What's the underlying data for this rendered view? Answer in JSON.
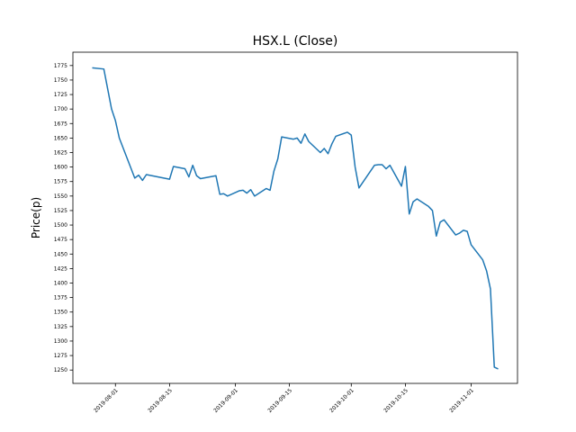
{
  "chart_data": {
    "type": "line",
    "title": "HSX.L (Close)",
    "y_label": "Price(p)",
    "color": "#1f77b4",
    "x": [
      "2019-07-26",
      "2019-07-29",
      "2019-07-31",
      "2019-08-01",
      "2019-08-02",
      "2019-08-06",
      "2019-08-07",
      "2019-08-08",
      "2019-08-09",
      "2019-08-15",
      "2019-08-16",
      "2019-08-19",
      "2019-08-20",
      "2019-08-21",
      "2019-08-22",
      "2019-08-23",
      "2019-08-27",
      "2019-08-28",
      "2019-08-29",
      "2019-08-30",
      "2019-09-02",
      "2019-09-03",
      "2019-09-04",
      "2019-09-05",
      "2019-09-06",
      "2019-09-09",
      "2019-09-10",
      "2019-09-11",
      "2019-09-12",
      "2019-09-13",
      "2019-09-16",
      "2019-09-17",
      "2019-09-18",
      "2019-09-19",
      "2019-09-20",
      "2019-09-23",
      "2019-09-24",
      "2019-09-25",
      "2019-09-26",
      "2019-09-27",
      "2019-09-30",
      "2019-10-01",
      "2019-10-02",
      "2019-10-03",
      "2019-10-07",
      "2019-10-08",
      "2019-10-09",
      "2019-10-10",
      "2019-10-11",
      "2019-10-14",
      "2019-10-15",
      "2019-10-16",
      "2019-10-17",
      "2019-10-18",
      "2019-10-21",
      "2019-10-22",
      "2019-10-23",
      "2019-10-24",
      "2019-10-25",
      "2019-10-28",
      "2019-10-29",
      "2019-10-30",
      "2019-10-31",
      "2019-11-01",
      "2019-11-04",
      "2019-11-05",
      "2019-11-06",
      "2019-11-07",
      "2019-11-08"
    ],
    "values": [
      1771,
      1769,
      1700,
      1680,
      1650,
      1581,
      1586,
      1577,
      1587,
      1579,
      1601,
      1597,
      1583,
      1603,
      1585,
      1580,
      1585,
      1553,
      1554,
      1550,
      1559,
      1560,
      1555,
      1561,
      1550,
      1563,
      1560,
      1593,
      1614,
      1652,
      1648,
      1650,
      1641,
      1657,
      1644,
      1625,
      1632,
      1623,
      1640,
      1653,
      1660,
      1655,
      1600,
      1564,
      1603,
      1604,
      1604,
      1597,
      1603,
      1567,
      1601,
      1519,
      1540,
      1545,
      1532,
      1525,
      1481,
      1505,
      1509,
      1483,
      1486,
      1491,
      1489,
      1466,
      1440,
      1421,
      1390,
      1255,
      1252
    ],
    "xlim": [
      "2019-07-21",
      "2019-11-13"
    ],
    "xticks": [
      "2019-08-01",
      "2019-08-15",
      "2019-09-01",
      "2019-09-15",
      "2019-10-01",
      "2019-10-15",
      "2019-11-01"
    ],
    "ylim": [
      1227,
      1798
    ],
    "yticks": [
      1250,
      1275,
      1300,
      1325,
      1350,
      1375,
      1400,
      1425,
      1450,
      1475,
      1500,
      1525,
      1550,
      1575,
      1600,
      1625,
      1650,
      1675,
      1700,
      1725,
      1750,
      1775
    ]
  }
}
